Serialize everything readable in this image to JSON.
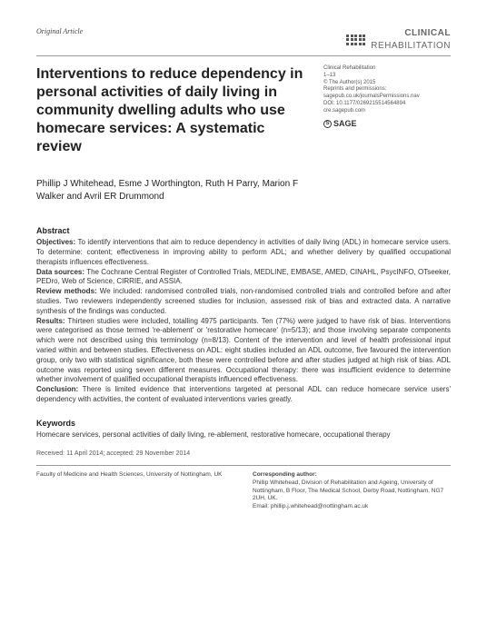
{
  "header": {
    "article_type": "Original Article",
    "brand_line1": "CLINICAL",
    "brand_line2": "REHABILITATION"
  },
  "meta": {
    "journal": "Clinical Rehabilitation",
    "pages": "1–13",
    "copyright": "© The Author(s) 2015",
    "reprints": "Reprints and permissions:",
    "reprints_url": "sagepub.co.uk/journalsPermissions.nav",
    "doi": "DOI: 10.1177/0269215514564894",
    "site": "cre.sagepub.com",
    "publisher": "SAGE"
  },
  "title": "Interventions to reduce dependency in personal activities of daily living in community dwelling adults who use homecare services: A systematic review",
  "authors": "Phillip J Whitehead, Esme J Worthington, Ruth H Parry, Marion F Walker and Avril ER Drummond",
  "abstract": {
    "heading": "Abstract",
    "objectives_label": "Objectives:",
    "objectives": " To identify interventions that aim to reduce dependency in activities of daily living (ADL) in homecare service users. To determine: content; effectiveness in improving ability to perform ADL; and whether delivery by qualified occupational therapists influences effectiveness.",
    "datasources_label": "Data sources:",
    "datasources": " The Cochrane Central Register of Controlled Trials, MEDLINE, EMBASE, AMED, CINAHL, PsycINFO, OTseeker, PEDro, Web of Science, CIRRIE, and ASSIA.",
    "review_label": "Review methods:",
    "review": " We included: randomised controlled trials, non-randomised controlled trials and controlled before and after studies. Two reviewers independently screened studies for inclusion, assessed risk of bias and extracted data. A narrative synthesis of the findings was conducted.",
    "results_label": "Results:",
    "results": " Thirteen studies were included, totalling 4975 participants. Ten (77%) were judged to have risk of bias. Interventions were categorised as those termed 're-ablement' or 'restorative homecare' (n=5/13); and those involving separate components which were not described using this terminology (n=8/13). Content of the intervention and level of health professional input varied within and between studies. Effectiveness on ADL: eight studies included an ADL outcome, five favoured the intervention group, only two with statistical significance, both these were controlled before and after studies judged at high risk of bias. ADL outcome was reported using seven different measures. Occupational therapy: there was insufficient evidence to determine whether involvement of qualified occupational therapists influenced effectiveness.",
    "conclusion_label": "Conclusion:",
    "conclusion": " There is limited evidence that interventions targeted at personal ADL can reduce homecare service users' dependency with activities, the content of evaluated interventions varies greatly."
  },
  "keywords": {
    "heading": "Keywords",
    "text": "Homecare services, personal activities of daily living, re-ablement, restorative homecare, occupational therapy"
  },
  "dates": "Received: 11 April 2014; accepted: 29 November 2014",
  "footer": {
    "affiliation": "Faculty of Medicine and Health Sciences, University of Nottingham, UK",
    "corr_head": "Corresponding author:",
    "corr_body": "Phillip Whitehead, Division of Rehabilitation and Ageing, University of Nottingham, B Floor, The Medical School, Derby Road, Nottingham, NG7 2UH, UK.",
    "corr_email": "Email: phillip.j.whitehead@nottingham.ac.uk"
  }
}
